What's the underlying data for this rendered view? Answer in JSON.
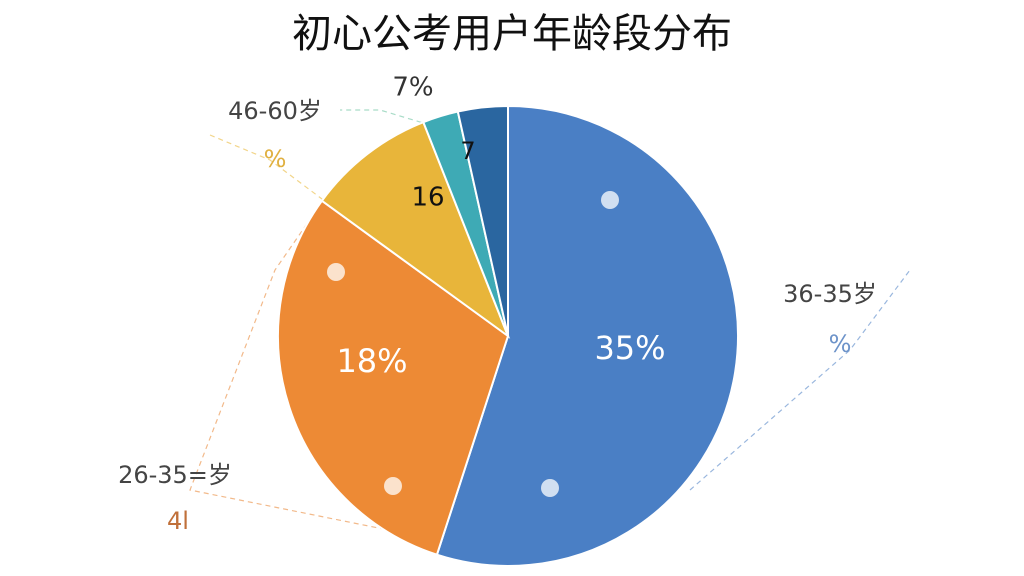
{
  "chart_data": {
    "type": "pie",
    "title": "初心公考用户年龄段分布",
    "values": [
      55,
      30,
      9,
      2.5,
      3.5
    ],
    "colors": [
      "#4a7fc5",
      "#ed8a35",
      "#e8b53a",
      "#3eaab5",
      "#2a66a0"
    ],
    "annotations": [
      "35%",
      "18%",
      "16",
      "7",
      "7%",
      "46-60岁",
      "%",
      "36-35岁",
      "%",
      "26-35=岁",
      "4l"
    ]
  }
}
